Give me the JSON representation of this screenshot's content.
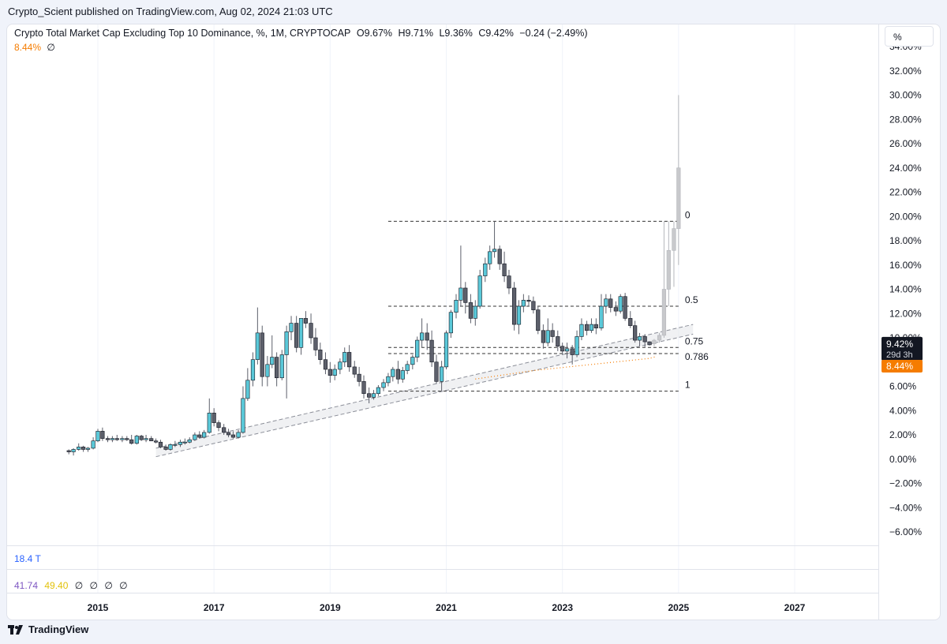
{
  "header": {
    "published": "Crypto_Scient published on TradingView.com, Aug 02, 2024 21:03 UTC"
  },
  "legend": {
    "title": "Crypto Total Market Cap Excluding Top 10 Dominance, %, 1M, CRYPTOCAP",
    "open": "O9.67%",
    "high": "H9.71%",
    "low": "L9.36%",
    "close": "C9.42%",
    "change": "−0.24 (−2.49%)",
    "indicator_value": "8.44%",
    "indicator_symbol": "∅"
  },
  "unit_label": "%",
  "volume_pane": {
    "label": "18.4 T"
  },
  "rsi_pane": {
    "v1": "41.74",
    "v2": "49.40",
    "symbols": [
      "∅",
      "∅",
      "∅",
      "∅"
    ]
  },
  "footer": {
    "brand": "TradingView"
  },
  "colors": {
    "up": "#5ac8d8",
    "down": "#5d606b",
    "ghost": "#c8c9cc",
    "indicator": "#f57c00",
    "rsi1": "#7e57c2",
    "rsi2": "#f2d21b",
    "fib": "#333333",
    "channel": "#8c8f99"
  },
  "chart_data": {
    "type": "candlestick",
    "title": "Crypto Total Market Cap Excluding Top 10 Dominance, %, 1M, CRYPTOCAP",
    "y_unit": "%",
    "ylim": [
      -7,
      34
    ],
    "y_ticks": [
      "34.00%",
      "32.00%",
      "30.00%",
      "28.00%",
      "26.00%",
      "24.00%",
      "22.00%",
      "20.00%",
      "18.00%",
      "16.00%",
      "14.00%",
      "12.00%",
      "10.00%",
      "8.00%",
      "6.00%",
      "4.00%",
      "2.00%",
      "0.00%",
      "−2.00%",
      "−4.00%",
      "−6.00%"
    ],
    "y_tick_values": [
      34,
      32,
      30,
      28,
      26,
      24,
      22,
      20,
      18,
      16,
      14,
      12,
      10,
      8,
      6,
      4,
      2,
      0,
      -2,
      -4,
      -6
    ],
    "x_range": [
      2014.0,
      2028.2
    ],
    "x_ticks": [
      "2015",
      "2017",
      "2019",
      "2021",
      "2023",
      "2025",
      "2027"
    ],
    "x_tick_values": [
      2015,
      2017,
      2019,
      2021,
      2023,
      2025,
      2027
    ],
    "last_price_label": "9.42%",
    "countdown_label": "29d 3h",
    "indicator_label": "8.44%",
    "last_close": 9.42,
    "indicator_last": 8.44,
    "fib_levels": [
      {
        "label": "0",
        "value": 19.6
      },
      {
        "label": "0.5",
        "value": 12.6
      },
      {
        "label": "0.75",
        "value": 9.2
      },
      {
        "label": "0.786",
        "value": 8.7
      },
      {
        "label": "1",
        "value": 5.6
      }
    ],
    "fib_x_range": [
      2020.0,
      2025.0
    ],
    "channel": {
      "lower": [
        [
          2016.0,
          0.2
        ],
        [
          2025.25,
          10.3
        ]
      ],
      "upper": [
        [
          2016.0,
          0.9
        ],
        [
          2025.25,
          11.1
        ]
      ]
    },
    "indicator_series": [
      [
        2021.5,
        6.6
      ],
      [
        2022.5,
        7.3
      ],
      [
        2023.5,
        7.8
      ],
      [
        2024.5,
        8.3
      ],
      [
        2024.6,
        8.44
      ]
    ],
    "candles": [
      [
        2014.5,
        0.7,
        0.8,
        0.4,
        0.6
      ],
      [
        2014.58,
        0.6,
        0.9,
        0.3,
        0.8
      ],
      [
        2014.67,
        0.8,
        1.3,
        0.7,
        1.0
      ],
      [
        2014.75,
        1.0,
        1.1,
        0.6,
        0.8
      ],
      [
        2014.83,
        0.8,
        1.0,
        0.6,
        0.9
      ],
      [
        2014.92,
        0.9,
        1.8,
        0.8,
        1.5
      ],
      [
        2015.0,
        1.5,
        2.5,
        1.4,
        2.3
      ],
      [
        2015.08,
        2.3,
        2.6,
        1.5,
        1.7
      ],
      [
        2015.17,
        1.7,
        1.9,
        1.4,
        1.6
      ],
      [
        2015.25,
        1.6,
        1.9,
        1.4,
        1.7
      ],
      [
        2015.33,
        1.7,
        2.0,
        1.5,
        1.6
      ],
      [
        2015.42,
        1.6,
        1.9,
        1.4,
        1.7
      ],
      [
        2015.5,
        1.7,
        1.9,
        1.5,
        1.6
      ],
      [
        2015.58,
        1.6,
        2.0,
        1.2,
        1.3
      ],
      [
        2015.67,
        1.3,
        2.0,
        1.2,
        1.9
      ],
      [
        2015.75,
        1.9,
        2.0,
        1.5,
        1.6
      ],
      [
        2015.83,
        1.6,
        2.0,
        1.4,
        1.7
      ],
      [
        2015.92,
        1.7,
        1.9,
        1.5,
        1.5
      ],
      [
        2016.0,
        1.5,
        1.7,
        1.3,
        1.4
      ],
      [
        2016.08,
        1.4,
        1.6,
        0.9,
        1.0
      ],
      [
        2016.17,
        1.0,
        1.2,
        0.7,
        0.8
      ],
      [
        2016.25,
        0.8,
        1.3,
        0.7,
        1.2
      ],
      [
        2016.33,
        1.2,
        1.5,
        1.0,
        1.2
      ],
      [
        2016.42,
        1.2,
        1.6,
        1.0,
        1.4
      ],
      [
        2016.5,
        1.4,
        1.7,
        1.2,
        1.4
      ],
      [
        2016.58,
        1.4,
        1.8,
        1.3,
        1.6
      ],
      [
        2016.67,
        1.6,
        2.2,
        1.5,
        2.0
      ],
      [
        2016.75,
        2.0,
        2.3,
        1.7,
        1.8
      ],
      [
        2016.83,
        1.8,
        2.4,
        1.7,
        2.2
      ],
      [
        2016.92,
        2.2,
        5.0,
        2.1,
        3.8
      ],
      [
        2017.0,
        3.8,
        4.2,
        2.7,
        3.0
      ],
      [
        2017.08,
        3.0,
        3.2,
        2.3,
        2.6
      ],
      [
        2017.17,
        2.6,
        2.9,
        2.0,
        2.2
      ],
      [
        2017.25,
        2.2,
        2.5,
        1.8,
        2.0
      ],
      [
        2017.33,
        2.0,
        2.3,
        1.7,
        1.8
      ],
      [
        2017.42,
        1.8,
        2.4,
        1.7,
        2.2
      ],
      [
        2017.5,
        2.2,
        6.0,
        2.1,
        5.0
      ],
      [
        2017.58,
        5.0,
        7.5,
        4.8,
        6.5
      ],
      [
        2017.67,
        6.5,
        8.8,
        6.0,
        8.2
      ],
      [
        2017.75,
        8.2,
        12.5,
        7.8,
        10.4
      ],
      [
        2017.83,
        10.4,
        11.0,
        6.0,
        6.8
      ],
      [
        2017.92,
        6.8,
        8.5,
        6.0,
        7.8
      ],
      [
        2018.0,
        7.8,
        10.2,
        7.5,
        8.4
      ],
      [
        2018.08,
        8.4,
        8.8,
        6.0,
        6.7
      ],
      [
        2018.17,
        6.7,
        9.0,
        6.5,
        8.6
      ],
      [
        2018.25,
        8.6,
        11.0,
        5.0,
        10.5
      ],
      [
        2018.33,
        10.5,
        11.8,
        9.8,
        11.2
      ],
      [
        2018.42,
        11.2,
        11.8,
        8.8,
        9.2
      ],
      [
        2018.5,
        9.2,
        11.6,
        8.6,
        11.6
      ],
      [
        2018.58,
        11.6,
        12.2,
        10.8,
        11.2
      ],
      [
        2018.67,
        11.2,
        12.0,
        9.5,
        10.0
      ],
      [
        2018.75,
        10.0,
        10.8,
        8.5,
        9.0
      ],
      [
        2018.83,
        9.0,
        9.6,
        7.8,
        8.2
      ],
      [
        2018.92,
        8.2,
        8.8,
        7.0,
        7.4
      ],
      [
        2019.0,
        7.4,
        8.0,
        6.3,
        6.9
      ],
      [
        2019.08,
        6.9,
        7.8,
        6.5,
        7.4
      ],
      [
        2019.17,
        7.4,
        8.3,
        7.0,
        8.0
      ],
      [
        2019.25,
        8.0,
        9.2,
        7.6,
        8.8
      ],
      [
        2019.33,
        8.8,
        9.4,
        7.2,
        7.6
      ],
      [
        2019.42,
        7.6,
        8.1,
        6.7,
        7.0
      ],
      [
        2019.5,
        7.0,
        7.6,
        6.0,
        6.4
      ],
      [
        2019.58,
        6.4,
        6.9,
        5.0,
        5.4
      ],
      [
        2019.67,
        5.4,
        5.9,
        4.6,
        5.1
      ],
      [
        2019.75,
        5.1,
        5.7,
        4.9,
        5.4
      ],
      [
        2019.83,
        5.4,
        6.1,
        5.2,
        5.9
      ],
      [
        2019.92,
        5.9,
        6.6,
        5.6,
        6.3
      ],
      [
        2020.0,
        6.3,
        7.1,
        6.0,
        6.8
      ],
      [
        2020.08,
        6.8,
        7.6,
        6.4,
        7.4
      ],
      [
        2020.17,
        7.4,
        8.1,
        6.2,
        6.6
      ],
      [
        2020.25,
        6.6,
        7.6,
        6.3,
        7.3
      ],
      [
        2020.33,
        7.3,
        8.1,
        7.0,
        7.8
      ],
      [
        2020.42,
        7.8,
        8.6,
        7.4,
        8.4
      ],
      [
        2020.5,
        8.4,
        10.1,
        8.0,
        9.8
      ],
      [
        2020.58,
        9.8,
        11.6,
        9.2,
        10.4
      ],
      [
        2020.67,
        10.4,
        11.2,
        9.0,
        9.8
      ],
      [
        2020.75,
        9.8,
        10.6,
        7.6,
        8.0
      ],
      [
        2020.83,
        8.0,
        8.6,
        6.2,
        6.4
      ],
      [
        2020.92,
        6.4,
        8.1,
        5.6,
        7.6
      ],
      [
        2021.0,
        7.6,
        10.6,
        7.4,
        10.4
      ],
      [
        2021.08,
        10.4,
        12.3,
        10.0,
        12.1
      ],
      [
        2021.17,
        12.1,
        13.6,
        11.6,
        13.1
      ],
      [
        2021.25,
        13.1,
        17.6,
        12.6,
        14.1
      ],
      [
        2021.33,
        14.1,
        14.6,
        12.0,
        12.9
      ],
      [
        2021.42,
        12.9,
        13.6,
        11.2,
        11.6
      ],
      [
        2021.5,
        11.6,
        13.1,
        11.0,
        12.6
      ],
      [
        2021.58,
        12.6,
        15.6,
        12.4,
        15.1
      ],
      [
        2021.67,
        15.1,
        16.6,
        14.6,
        16.1
      ],
      [
        2021.75,
        16.1,
        17.6,
        15.6,
        17.1
      ],
      [
        2021.83,
        17.1,
        19.6,
        16.6,
        17.3
      ],
      [
        2021.92,
        17.3,
        17.6,
        15.6,
        16.1
      ],
      [
        2022.0,
        16.1,
        17.1,
        14.6,
        15.1
      ],
      [
        2022.08,
        15.1,
        15.6,
        13.6,
        14.1
      ],
      [
        2022.17,
        14.1,
        14.6,
        10.6,
        11.1
      ],
      [
        2022.25,
        11.1,
        13.1,
        10.3,
        12.6
      ],
      [
        2022.33,
        12.6,
        13.6,
        12.1,
        13.1
      ],
      [
        2022.42,
        13.1,
        13.5,
        12.6,
        13.0
      ],
      [
        2022.5,
        13.0,
        13.4,
        12.0,
        12.3
      ],
      [
        2022.58,
        12.3,
        12.6,
        10.3,
        10.6
      ],
      [
        2022.67,
        10.6,
        11.1,
        9.1,
        9.6
      ],
      [
        2022.75,
        9.6,
        11.6,
        9.3,
        10.6
      ],
      [
        2022.83,
        10.6,
        11.2,
        9.6,
        10.1
      ],
      [
        2022.92,
        10.1,
        10.6,
        8.9,
        9.3
      ],
      [
        2023.0,
        9.3,
        9.6,
        8.6,
        8.9
      ],
      [
        2023.08,
        8.9,
        9.6,
        8.3,
        9.1
      ],
      [
        2023.17,
        9.1,
        9.4,
        7.8,
        8.6
      ],
      [
        2023.25,
        8.6,
        10.6,
        8.4,
        10.1
      ],
      [
        2023.33,
        10.1,
        11.6,
        9.8,
        11.1
      ],
      [
        2023.42,
        11.1,
        11.4,
        10.2,
        10.6
      ],
      [
        2023.5,
        10.6,
        11.6,
        10.4,
        11.1
      ],
      [
        2023.58,
        11.1,
        11.6,
        10.3,
        10.8
      ],
      [
        2023.67,
        10.8,
        13.6,
        10.6,
        12.6
      ],
      [
        2023.75,
        12.6,
        13.6,
        12.0,
        13.2
      ],
      [
        2023.83,
        13.2,
        13.6,
        12.1,
        12.5
      ],
      [
        2023.92,
        12.5,
        13.0,
        11.8,
        12.2
      ],
      [
        2024.0,
        12.2,
        13.6,
        12.0,
        13.4
      ],
      [
        2024.08,
        13.4,
        13.7,
        11.4,
        11.6
      ],
      [
        2024.17,
        11.6,
        12.2,
        10.8,
        11.0
      ],
      [
        2024.25,
        11.0,
        11.4,
        9.6,
        9.8
      ],
      [
        2024.33,
        9.8,
        10.4,
        9.3,
        10.1
      ],
      [
        2024.42,
        10.1,
        10.3,
        9.2,
        9.67
      ],
      [
        2024.5,
        9.67,
        9.71,
        9.36,
        9.42
      ]
    ],
    "projection": [
      [
        2024.58,
        9.5,
        9.9,
        9.3,
        9.8
      ],
      [
        2024.67,
        9.8,
        10.4,
        9.6,
        10.2
      ],
      [
        2024.75,
        10.2,
        19.6,
        10.0,
        14.0
      ],
      [
        2024.83,
        14.0,
        19.6,
        12.6,
        17.2
      ],
      [
        2024.92,
        17.2,
        19.6,
        14.2,
        19.0
      ],
      [
        2025.0,
        19.0,
        30.0,
        16.0,
        24.0
      ]
    ]
  }
}
